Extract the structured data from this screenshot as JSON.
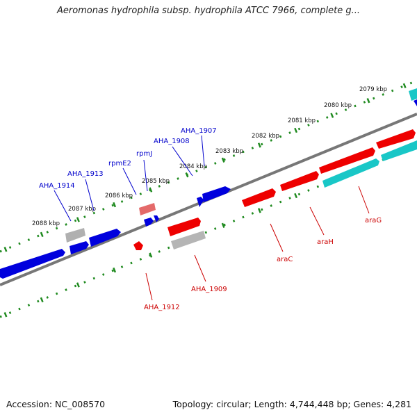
{
  "title": "Aeromonas hydrophila subsp. hydrophila ATCC 7966, complete g...",
  "footer": {
    "accession": "Accession: NC_008570",
    "summary": "Topology: circular; Length: 4,744,448 bp; Genes: 4,281"
  },
  "colors": {
    "backbone": "#7a7a7a",
    "scale_dots": "#1f8a1f",
    "forward_gene": "#0000dd",
    "reverse_gene": "#ee0000",
    "cyan_gene": "#19c7c7",
    "gray_gene": "#b8b8b8",
    "pink_gene": "#e87070",
    "forward_label": "#0000cc",
    "reverse_label": "#cc0000"
  },
  "scale_labels": [
    "2079 kbp",
    "2080 kbp",
    "2081 kbp",
    "2082 kbp",
    "2083 kbp",
    "2084 kbp",
    "2085 kbp",
    "2086 kbp",
    "2087 kbp",
    "2088 kbp"
  ],
  "forward_labels": [
    "AHA_1907",
    "AHA_1908",
    "rpmJ",
    "rpmE2",
    "AHA_1913",
    "AHA_1914"
  ],
  "reverse_labels": [
    "araG",
    "araH",
    "araC",
    "AHA_1909",
    "AHA_1912"
  ]
}
